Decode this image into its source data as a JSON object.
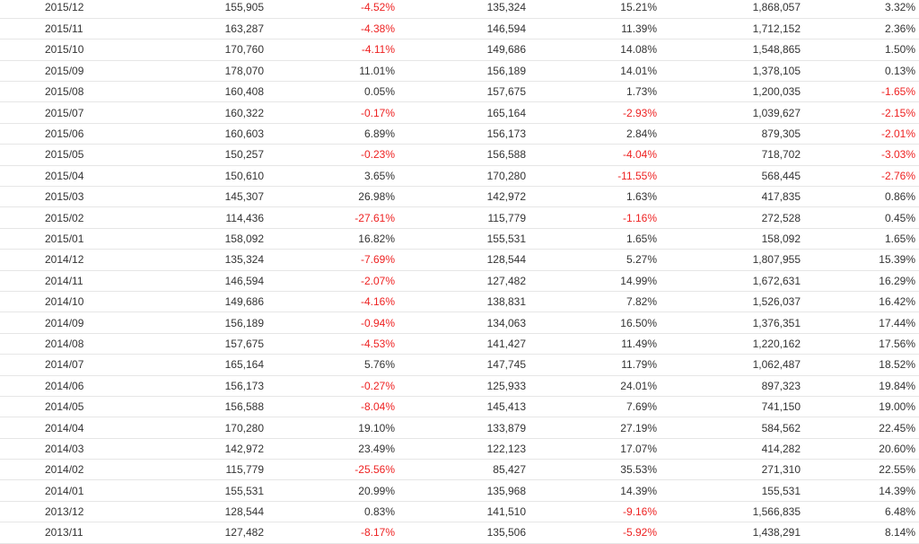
{
  "colors": {
    "text": "#333333",
    "negative": "#ee2222",
    "row_border": "#e6e6e6"
  },
  "rows": [
    [
      "2015/12",
      "155,905",
      "-4.52%",
      "135,324",
      "15.21%",
      "1,868,057",
      "3.32%"
    ],
    [
      "2015/11",
      "163,287",
      "-4.38%",
      "146,594",
      "11.39%",
      "1,712,152",
      "2.36%"
    ],
    [
      "2015/10",
      "170,760",
      "-4.11%",
      "149,686",
      "14.08%",
      "1,548,865",
      "1.50%"
    ],
    [
      "2015/09",
      "178,070",
      "11.01%",
      "156,189",
      "14.01%",
      "1,378,105",
      "0.13%"
    ],
    [
      "2015/08",
      "160,408",
      "0.05%",
      "157,675",
      "1.73%",
      "1,200,035",
      "-1.65%"
    ],
    [
      "2015/07",
      "160,322",
      "-0.17%",
      "165,164",
      "-2.93%",
      "1,039,627",
      "-2.15%"
    ],
    [
      "2015/06",
      "160,603",
      "6.89%",
      "156,173",
      "2.84%",
      "879,305",
      "-2.01%"
    ],
    [
      "2015/05",
      "150,257",
      "-0.23%",
      "156,588",
      "-4.04%",
      "718,702",
      "-3.03%"
    ],
    [
      "2015/04",
      "150,610",
      "3.65%",
      "170,280",
      "-11.55%",
      "568,445",
      "-2.76%"
    ],
    [
      "2015/03",
      "145,307",
      "26.98%",
      "142,972",
      "1.63%",
      "417,835",
      "0.86%"
    ],
    [
      "2015/02",
      "114,436",
      "-27.61%",
      "115,779",
      "-1.16%",
      "272,528",
      "0.45%"
    ],
    [
      "2015/01",
      "158,092",
      "16.82%",
      "155,531",
      "1.65%",
      "158,092",
      "1.65%"
    ],
    [
      "2014/12",
      "135,324",
      "-7.69%",
      "128,544",
      "5.27%",
      "1,807,955",
      "15.39%"
    ],
    [
      "2014/11",
      "146,594",
      "-2.07%",
      "127,482",
      "14.99%",
      "1,672,631",
      "16.29%"
    ],
    [
      "2014/10",
      "149,686",
      "-4.16%",
      "138,831",
      "7.82%",
      "1,526,037",
      "16.42%"
    ],
    [
      "2014/09",
      "156,189",
      "-0.94%",
      "134,063",
      "16.50%",
      "1,376,351",
      "17.44%"
    ],
    [
      "2014/08",
      "157,675",
      "-4.53%",
      "141,427",
      "11.49%",
      "1,220,162",
      "17.56%"
    ],
    [
      "2014/07",
      "165,164",
      "5.76%",
      "147,745",
      "11.79%",
      "1,062,487",
      "18.52%"
    ],
    [
      "2014/06",
      "156,173",
      "-0.27%",
      "125,933",
      "24.01%",
      "897,323",
      "19.84%"
    ],
    [
      "2014/05",
      "156,588",
      "-8.04%",
      "145,413",
      "7.69%",
      "741,150",
      "19.00%"
    ],
    [
      "2014/04",
      "170,280",
      "19.10%",
      "133,879",
      "27.19%",
      "584,562",
      "22.45%"
    ],
    [
      "2014/03",
      "142,972",
      "23.49%",
      "122,123",
      "17.07%",
      "414,282",
      "20.60%"
    ],
    [
      "2014/02",
      "115,779",
      "-25.56%",
      "85,427",
      "35.53%",
      "271,310",
      "22.55%"
    ],
    [
      "2014/01",
      "155,531",
      "20.99%",
      "135,968",
      "14.39%",
      "155,531",
      "14.39%"
    ],
    [
      "2013/12",
      "128,544",
      "0.83%",
      "141,510",
      "-9.16%",
      "1,566,835",
      "6.48%"
    ],
    [
      "2013/11",
      "127,482",
      "-8.17%",
      "135,506",
      "-5.92%",
      "1,438,291",
      "8.14%"
    ]
  ]
}
